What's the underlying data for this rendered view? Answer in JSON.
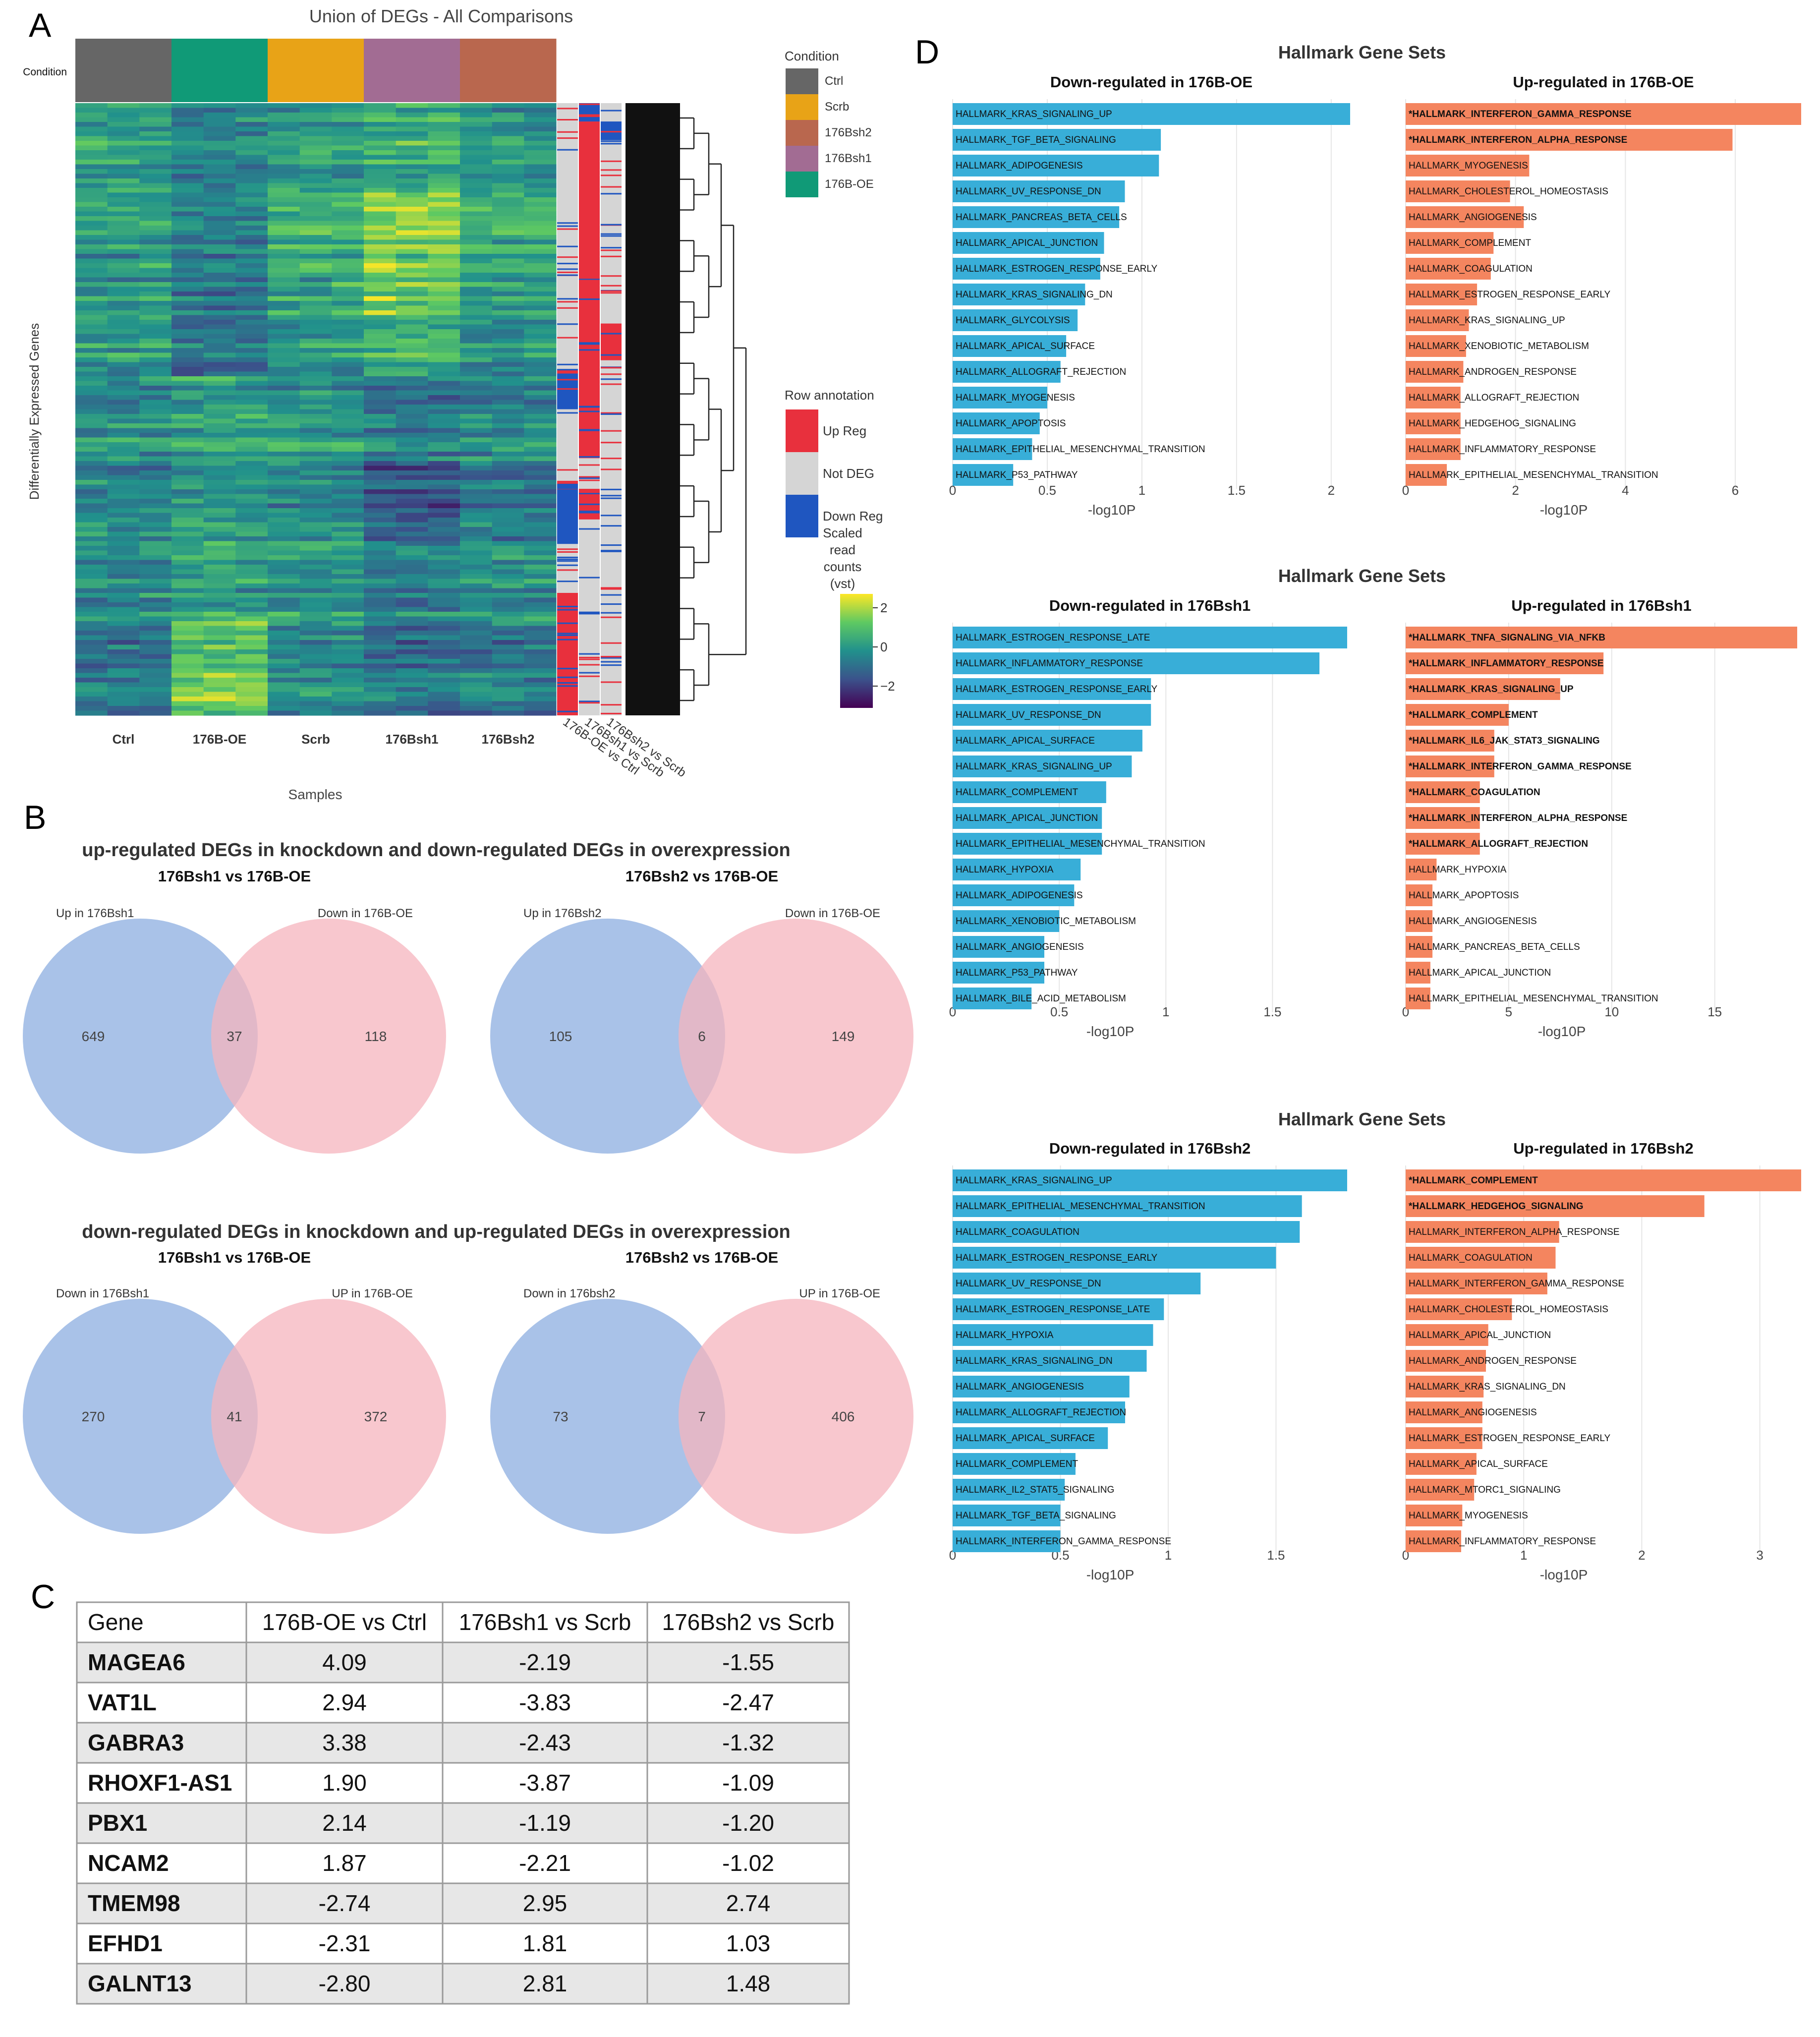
{
  "panels": {
    "a": "A",
    "b": "B",
    "c": "C",
    "d": "D"
  },
  "colors": {
    "ctrl": "#666666",
    "oe": "#109a77",
    "scrb": "#e8a317",
    "bsh1": "#a26c93",
    "bsh2": "#b9674e",
    "up": "#e8303d",
    "notdeg": "#d5d5d5",
    "down": "#1f56c0",
    "downbar": "#38aed8",
    "upbar": "#f4855f",
    "venn_blue": "#a9c2e8",
    "venn_pink": "#f6b4be",
    "venn_overlap": "#b2869f"
  },
  "heatmap": {
    "title": "Union of DEGs - All Comparisons",
    "condition_side_label": "Condition",
    "y_axis_label": "Differentially Expressed Genes",
    "x_axis_label": "Samples",
    "groups": [
      "Ctrl",
      "176B-OE",
      "Scrb",
      "176Bsh1",
      "176Bsh2"
    ],
    "row_annotation_columns": [
      "176B-OE vs Ctrl",
      "176Bsh1 vs Scrb",
      "176Bsh2 vs Scrb"
    ],
    "condition_legend": {
      "title": "Condition",
      "items": [
        "Ctrl",
        "Scrb",
        "176Bsh2",
        "176Bsh1",
        "176B-OE"
      ]
    },
    "row_legend": {
      "title": "Row annotation",
      "items": [
        "Up Reg",
        "Not DEG",
        "Down Reg"
      ]
    },
    "color_legend": {
      "title_lines": [
        "Scaled",
        "read",
        "counts",
        "(vst)"
      ],
      "ticks": [
        "2",
        "0",
        "−2"
      ]
    }
  },
  "venn_section": {
    "heading_up": "up-regulated DEGs in knockdown and down-regulated DEGs in overexpression",
    "heading_down": "down-regulated DEGs in knockdown and up-regulated DEGs in overexpression",
    "diagrams": [
      {
        "title": "176Bsh1 vs 176B-OE",
        "left_label": "Up in 176Bsh1",
        "right_label": "Down in 176B-OE",
        "left": "649",
        "overlap": "37",
        "right": "118"
      },
      {
        "title": "176Bsh2 vs 176B-OE",
        "left_label": "Up in 176Bsh2",
        "right_label": "Down in 176B-OE",
        "left": "105",
        "overlap": "6",
        "right": "149"
      },
      {
        "title": "176Bsh1 vs 176B-OE",
        "left_label": "Down in 176Bsh1",
        "right_label": "UP in 176B-OE",
        "left": "270",
        "overlap": "41",
        "right": "372"
      },
      {
        "title": "176Bsh2 vs 176B-OE",
        "left_label": "Down in 176bsh2",
        "right_label": "UP in 176B-OE",
        "left": "73",
        "overlap": "7",
        "right": "406"
      }
    ]
  },
  "table": {
    "headers": [
      "Gene",
      "176B-OE vs Ctrl",
      "176Bsh1 vs Scrb",
      "176Bsh2 vs Scrb"
    ],
    "rows": [
      [
        "MAGEA6",
        "4.09",
        "-2.19",
        "-1.55"
      ],
      [
        "VAT1L",
        "2.94",
        "-3.83",
        "-2.47"
      ],
      [
        "GABRA3",
        "3.38",
        "-2.43",
        "-1.32"
      ],
      [
        "RHOXF1-AS1",
        "1.90",
        "-3.87",
        "-1.09"
      ],
      [
        "PBX1",
        "2.14",
        "-1.19",
        "-1.20"
      ],
      [
        "NCAM2",
        "1.87",
        "-2.21",
        "-1.02"
      ],
      [
        "TMEM98",
        "-2.74",
        "2.95",
        "2.74"
      ],
      [
        "EFHD1",
        "-2.31",
        "1.81",
        "1.03"
      ],
      [
        "GALNT13",
        "-2.80",
        "2.81",
        "1.48"
      ]
    ]
  },
  "chart_data": [
    {
      "type": "bar",
      "orientation": "horizontal",
      "title": "Hallmark Gene Sets",
      "subtitle": "Down-regulated in 176B-OE",
      "xlabel": "-log10P",
      "xlim": [
        0,
        2.1
      ],
      "xticks": [
        0,
        0.5,
        1,
        1.5,
        2
      ],
      "categories": [
        "HALLMARK_KRAS_SIGNALING_UP",
        "HALLMARK_TGF_BETA_SIGNALING",
        "HALLMARK_ADIPOGENESIS",
        "HALLMARK_UV_RESPONSE_DN",
        "HALLMARK_PANCREAS_BETA_CELLS",
        "HALLMARK_APICAL_JUNCTION",
        "HALLMARK_ESTROGEN_RESPONSE_EARLY",
        "HALLMARK_KRAS_SIGNALING_DN",
        "HALLMARK_GLYCOLYSIS",
        "HALLMARK_APICAL_SURFACE",
        "HALLMARK_ALLOGRAFT_REJECTION",
        "HALLMARK_MYOGENESIS",
        "HALLMARK_APOPTOSIS",
        "HALLMARK_EPITHELIAL_MESENCHYMAL_TRANSITION",
        "HALLMARK_P53_PATHWAY"
      ],
      "values": [
        2.1,
        1.1,
        1.09,
        0.91,
        0.88,
        0.8,
        0.78,
        0.7,
        0.66,
        0.6,
        0.57,
        0.5,
        0.46,
        0.42,
        0.32
      ],
      "significant": []
    },
    {
      "type": "bar",
      "orientation": "horizontal",
      "title": "Hallmark Gene Sets",
      "subtitle": "Up-regulated in 176B-OE",
      "xlabel": "-log10P",
      "xlim": [
        0,
        7.2
      ],
      "xticks": [
        0,
        2,
        4,
        6
      ],
      "categories": [
        "HALLMARK_INTERFERON_GAMMA_RESPONSE",
        "HALLMARK_INTERFERON_ALPHA_RESPONSE",
        "HALLMARK_MYOGENESIS",
        "HALLMARK_CHOLESTEROL_HOMEOSTASIS",
        "HALLMARK_ANGIOGENESIS",
        "HALLMARK_COMPLEMENT",
        "HALLMARK_COAGULATION",
        "HALLMARK_ESTROGEN_RESPONSE_EARLY",
        "HALLMARK_KRAS_SIGNALING_UP",
        "HALLMARK_XENOBIOTIC_METABOLISM",
        "HALLMARK_ANDROGEN_RESPONSE",
        "HALLMARK_ALLOGRAFT_REJECTION",
        "HALLMARK_HEDGEHOG_SIGNALING",
        "HALLMARK_INFLAMMATORY_RESPONSE",
        "HALLMARK_EPITHELIAL_MESENCHYMAL_TRANSITION"
      ],
      "values": [
        7.2,
        5.95,
        2.25,
        1.9,
        2.15,
        1.6,
        1.55,
        1.3,
        1.15,
        1.1,
        1.05,
        1.0,
        1.0,
        1.0,
        0.75
      ],
      "significant": [
        "HALLMARK_INTERFERON_GAMMA_RESPONSE",
        "HALLMARK_INTERFERON_ALPHA_RESPONSE"
      ]
    },
    {
      "type": "bar",
      "orientation": "horizontal",
      "title": "Hallmark Gene Sets",
      "subtitle": "Down-regulated in 176Bsh1",
      "xlabel": "-log10P",
      "xlim": [
        0,
        1.85
      ],
      "xticks": [
        0,
        0.5,
        1,
        1.5
      ],
      "categories": [
        "HALLMARK_ESTROGEN_RESPONSE_LATE",
        "HALLMARK_INFLAMMATORY_RESPONSE",
        "HALLMARK_ESTROGEN_RESPONSE_EARLY",
        "HALLMARK_UV_RESPONSE_DN",
        "HALLMARK_APICAL_SURFACE",
        "HALLMARK_KRAS_SIGNALING_UP",
        "HALLMARK_COMPLEMENT",
        "HALLMARK_APICAL_JUNCTION",
        "HALLMARK_EPITHELIAL_MESENCHYMAL_TRANSITION",
        "HALLMARK_HYPOXIA",
        "HALLMARK_ADIPOGENESIS",
        "HALLMARK_XENOBIOTIC_METABOLISM",
        "HALLMARK_ANGIOGENESIS",
        "HALLMARK_P53_PATHWAY",
        "HALLMARK_BILE_ACID_METABOLISM"
      ],
      "values": [
        1.85,
        1.72,
        0.93,
        0.93,
        0.89,
        0.84,
        0.72,
        0.7,
        0.7,
        0.6,
        0.57,
        0.5,
        0.43,
        0.43,
        0.37
      ],
      "significant": []
    },
    {
      "type": "bar",
      "orientation": "horizontal",
      "title": "Hallmark Gene Sets",
      "subtitle": "Up-regulated in 176Bsh1",
      "xlabel": "-log10P",
      "xlim": [
        0,
        19
      ],
      "xticks": [
        0,
        5,
        10,
        15
      ],
      "categories": [
        "HALLMARK_TNFA_SIGNALING_VIA_NFKB",
        "HALLMARK_INFLAMMATORY_RESPONSE",
        "HALLMARK_KRAS_SIGNALING_UP",
        "HALLMARK_COMPLEMENT",
        "HALLMARK_IL6_JAK_STAT3_SIGNALING",
        "HALLMARK_INTERFERON_GAMMA_RESPONSE",
        "HALLMARK_COAGULATION",
        "HALLMARK_INTERFERON_ALPHA_RESPONSE",
        "HALLMARK_ALLOGRAFT_REJECTION",
        "HALLMARK_HYPOXIA",
        "HALLMARK_APOPTOSIS",
        "HALLMARK_ANGIOGENESIS",
        "HALLMARK_PANCREAS_BETA_CELLS",
        "HALLMARK_APICAL_JUNCTION",
        "HALLMARK_EPITHELIAL_MESENCHYMAL_TRANSITION"
      ],
      "values": [
        19,
        9.6,
        7.5,
        5,
        4.3,
        4.3,
        3.6,
        3.6,
        3.6,
        1.5,
        1.3,
        1.3,
        1.3,
        1.2,
        1.2
      ],
      "significant": [
        "HALLMARK_TNFA_SIGNALING_VIA_NFKB",
        "HALLMARK_INFLAMMATORY_RESPONSE",
        "HALLMARK_KRAS_SIGNALING_UP",
        "HALLMARK_COMPLEMENT",
        "HALLMARK_IL6_JAK_STAT3_SIGNALING",
        "HALLMARK_INTERFERON_GAMMA_RESPONSE",
        "HALLMARK_COAGULATION",
        "HALLMARK_INTERFERON_ALPHA_RESPONSE",
        "HALLMARK_ALLOGRAFT_REJECTION"
      ]
    },
    {
      "type": "bar",
      "orientation": "horizontal",
      "title": "Hallmark Gene Sets",
      "subtitle": "Down-regulated in 176Bsh2",
      "xlabel": "-log10P",
      "xlim": [
        0,
        1.83
      ],
      "xticks": [
        0,
        0.5,
        1,
        1.5
      ],
      "categories": [
        "HALLMARK_KRAS_SIGNALING_UP",
        "HALLMARK_EPITHELIAL_MESENCHYMAL_TRANSITION",
        "HALLMARK_COAGULATION",
        "HALLMARK_ESTROGEN_RESPONSE_EARLY",
        "HALLMARK_UV_RESPONSE_DN",
        "HALLMARK_ESTROGEN_RESPONSE_LATE",
        "HALLMARK_HYPOXIA",
        "HALLMARK_KRAS_SIGNALING_DN",
        "HALLMARK_ANGIOGENESIS",
        "HALLMARK_ALLOGRAFT_REJECTION",
        "HALLMARK_APICAL_SURFACE",
        "HALLMARK_COMPLEMENT",
        "HALLMARK_IL2_STAT5_SIGNALING",
        "HALLMARK_TGF_BETA_SIGNALING",
        "HALLMARK_INTERFERON_GAMMA_RESPONSE"
      ],
      "values": [
        1.83,
        1.62,
        1.61,
        1.5,
        1.15,
        0.98,
        0.93,
        0.9,
        0.82,
        0.8,
        0.72,
        0.57,
        0.52,
        0.5,
        0.5
      ],
      "significant": []
    },
    {
      "type": "bar",
      "orientation": "horizontal",
      "title": "Hallmark Gene Sets",
      "subtitle": "Up-regulated in 176Bsh2",
      "xlabel": "-log10P",
      "xlim": [
        0,
        3.35
      ],
      "xticks": [
        0,
        1,
        2,
        3
      ],
      "categories": [
        "HALLMARK_COMPLEMENT",
        "HALLMARK_HEDGEHOG_SIGNALING",
        "HALLMARK_INTERFERON_ALPHA_RESPONSE",
        "HALLMARK_COAGULATION",
        "HALLMARK_INTERFERON_GAMMA_RESPONSE",
        "HALLMARK_CHOLESTEROL_HOMEOSTASIS",
        "HALLMARK_APICAL_JUNCTION",
        "HALLMARK_ANDROGEN_RESPONSE",
        "HALLMARK_KRAS_SIGNALING_DN",
        "HALLMARK_ANGIOGENESIS",
        "HALLMARK_ESTROGEN_RESPONSE_EARLY",
        "HALLMARK_APICAL_SURFACE",
        "HALLMARK_MTORC1_SIGNALING",
        "HALLMARK_MYOGENESIS",
        "HALLMARK_INFLAMMATORY_RESPONSE"
      ],
      "values": [
        3.35,
        2.53,
        1.3,
        1.27,
        1.2,
        0.9,
        0.7,
        0.68,
        0.66,
        0.65,
        0.65,
        0.6,
        0.58,
        0.48,
        0.47
      ],
      "significant": [
        "HALLMARK_COMPLEMENT",
        "HALLMARK_HEDGEHOG_SIGNALING"
      ]
    }
  ]
}
